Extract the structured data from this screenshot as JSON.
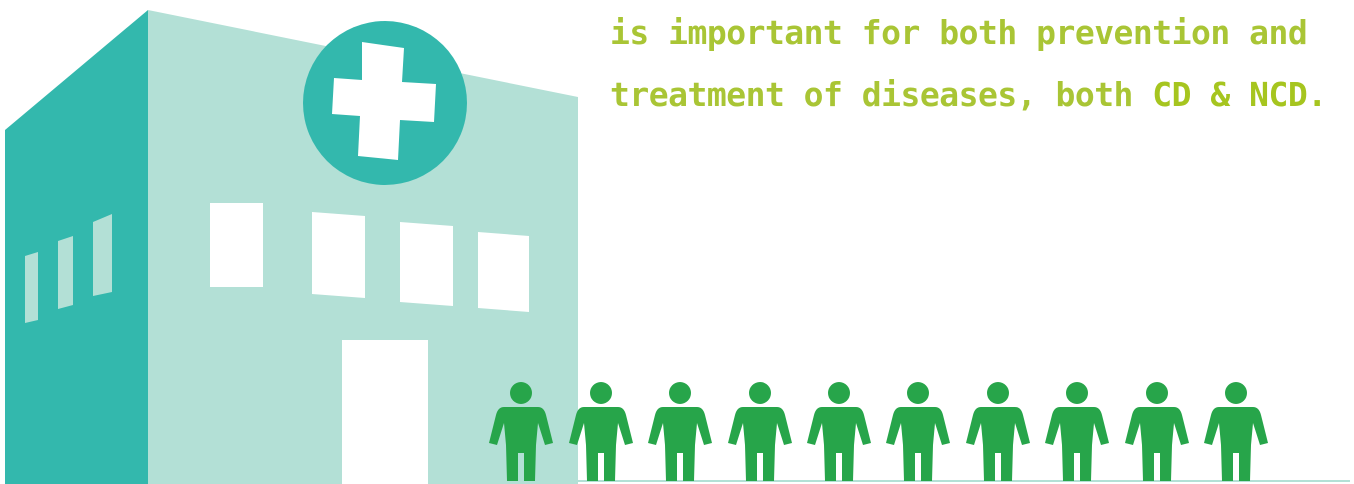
{
  "text": {
    "plain": "is important for both prevention and treatment of diseases, both ",
    "emphasis": "CD & NCD."
  }
}
